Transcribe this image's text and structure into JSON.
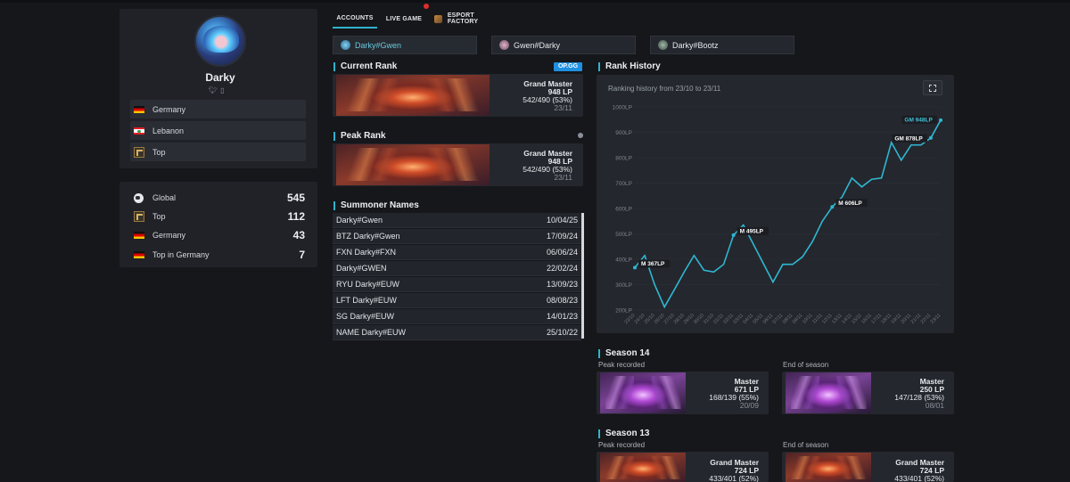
{
  "profile": {
    "name": "Darky",
    "locations": [
      {
        "label": "Germany",
        "flag": "de"
      },
      {
        "label": "Lebanon",
        "flag": "lb"
      },
      {
        "label": "Top",
        "flag": "role"
      }
    ],
    "stats": [
      {
        "label": "Global",
        "value": "545",
        "icon": "globe"
      },
      {
        "label": "Top",
        "value": "112",
        "icon": "role"
      },
      {
        "label": "Germany",
        "value": "43",
        "icon": "de"
      },
      {
        "label": "Top in Germany",
        "value": "7",
        "icon": "de"
      }
    ]
  },
  "tabs": {
    "accounts": "ACCOUNTS",
    "live": "LIVE GAME",
    "factory": "ESPORT FACTORY"
  },
  "accounts": [
    "Darky#Gwen",
    "Gwen#Darky",
    "Darky#Bootz"
  ],
  "current_rank": {
    "title": "Current Rank",
    "badge": "OP.GG",
    "tier": "Grand Master",
    "lp": "948 LP",
    "record": "542/490 (53%)",
    "date": "23/11"
  },
  "peak_rank": {
    "title": "Peak Rank",
    "tier": "Grand Master",
    "lp": "948 LP",
    "record": "542/490 (53%)",
    "date": "23/11"
  },
  "summoner_names": {
    "title": "Summoner Names",
    "rows": [
      {
        "name": "Darky#Gwen",
        "date": "10/04/25"
      },
      {
        "name": "BTZ Darky#Gwen",
        "date": "17/09/24"
      },
      {
        "name": "FXN Darky#FXN",
        "date": "06/06/24"
      },
      {
        "name": "Darky#GWEN",
        "date": "22/02/24"
      },
      {
        "name": "RYU Darky#EUW",
        "date": "13/09/23"
      },
      {
        "name": "LFT Darky#EUW",
        "date": "08/08/23"
      },
      {
        "name": "SG Darky#EUW",
        "date": "14/01/23"
      },
      {
        "name": "NAME Darky#EUW",
        "date": "25/10/22"
      }
    ]
  },
  "rank_history": {
    "title": "Rank History",
    "subtitle": "Ranking history from 23/10 to 23/11"
  },
  "chart_data": {
    "type": "line",
    "x": [
      "23/10",
      "24/10",
      "25/10",
      "26/10",
      "27/10",
      "28/10",
      "29/10",
      "30/10",
      "31/10",
      "01/11",
      "02/11",
      "03/11",
      "04/11",
      "05/11",
      "06/11",
      "07/11",
      "08/11",
      "09/11",
      "10/11",
      "11/11",
      "12/11",
      "13/11",
      "14/11",
      "15/11",
      "16/11",
      "17/11",
      "18/11",
      "19/11",
      "20/11",
      "21/11",
      "22/11",
      "23/11"
    ],
    "series": [
      {
        "values": [
          367,
          415,
          300,
          212,
          280,
          350,
          415,
          357,
          350,
          380,
          495,
          535,
          460,
          385,
          310,
          380,
          380,
          410,
          470,
          550,
          606,
          645,
          720,
          685,
          715,
          720,
          860,
          790,
          850,
          850,
          878,
          948
        ]
      }
    ],
    "ylim": [
      200,
      1000
    ],
    "yticks": [
      "200LP",
      "300LP",
      "400LP",
      "500LP",
      "600LP",
      "700LP",
      "800LP",
      "900LP",
      "1000LP"
    ],
    "annotations": [
      {
        "index": 0,
        "text": "M 367LP",
        "color": "#ffffff"
      },
      {
        "index": 10,
        "text": "M 495LP",
        "color": "#ffffff"
      },
      {
        "index": 20,
        "text": "M 606LP",
        "color": "#ffffff"
      },
      {
        "index": 30,
        "text": "GM 878LP",
        "color": "#ffffff"
      },
      {
        "index": 31,
        "text": "GM 948LP",
        "color": "#3fc1d8"
      }
    ],
    "line_color": "#2fb7d2"
  },
  "seasons": [
    {
      "title": "Season 14",
      "peak": {
        "label": "Peak recorded",
        "tier": "Master",
        "lp": "671 LP",
        "record": "168/139 (55%)",
        "date": "20/09"
      },
      "end": {
        "label": "End of season",
        "tier": "Master",
        "lp": "250 LP",
        "record": "147/128 (53%)",
        "date": "08/01"
      }
    },
    {
      "title": "Season 13",
      "peak": {
        "label": "Peak recorded",
        "tier": "Grand Master",
        "lp": "724 LP",
        "record": "433/401 (52%)",
        "date": ""
      },
      "end": {
        "label": "End of season",
        "tier": "Grand Master",
        "lp": "724 LP",
        "record": "433/401 (52%)",
        "date": ""
      }
    }
  ]
}
